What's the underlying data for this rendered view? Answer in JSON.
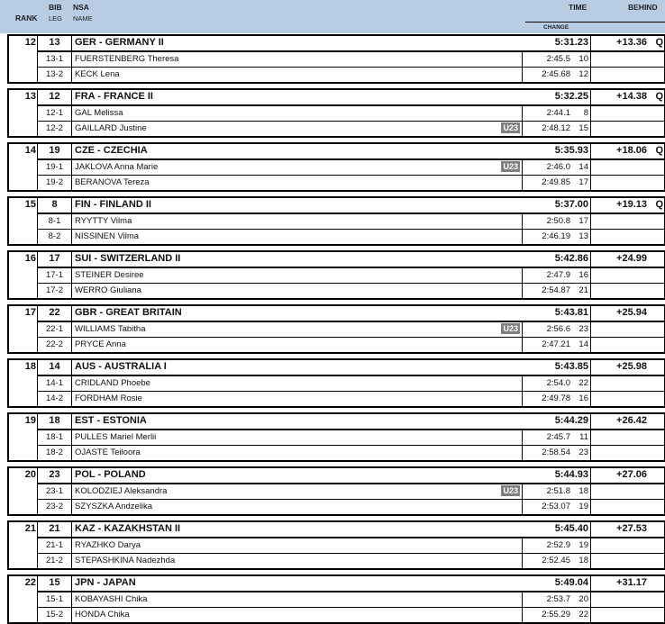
{
  "header": {
    "rank": "RANK",
    "bib": "BIB",
    "leg": "LEG",
    "nsa": "NSA",
    "name": "NAME",
    "time": "TIME",
    "change": "CHANGE",
    "behind": "BEHIND"
  },
  "groups": [
    {
      "rank": "12",
      "bib": "13",
      "team": "GER - GERMANY II",
      "time": "5:31.23",
      "behind": "+13.36",
      "q": "Q",
      "legs": [
        {
          "leg": "13-1",
          "name": "FUERSTENBERG Theresa",
          "u23": "",
          "time": "2:45.5",
          "pos": "10"
        },
        {
          "leg": "13-2",
          "name": "KECK Lena",
          "u23": "",
          "time": "2:45.68",
          "pos": "12"
        }
      ]
    },
    {
      "rank": "13",
      "bib": "12",
      "team": "FRA - FRANCE II",
      "time": "5:32.25",
      "behind": "+14.38",
      "q": "Q",
      "legs": [
        {
          "leg": "12-1",
          "name": "GAL Melissa",
          "u23": "",
          "time": "2:44.1",
          "pos": "8"
        },
        {
          "leg": "12-2",
          "name": "GAILLARD Justine",
          "u23": "U23",
          "time": "2:48.12",
          "pos": "15"
        }
      ]
    },
    {
      "rank": "14",
      "bib": "19",
      "team": "CZE - CZECHIA",
      "time": "5:35.93",
      "behind": "+18.06",
      "q": "Q",
      "legs": [
        {
          "leg": "19-1",
          "name": "JAKLOVA Anna Marie",
          "u23": "U23",
          "time": "2:46.0",
          "pos": "14"
        },
        {
          "leg": "19-2",
          "name": "BERANOVA Tereza",
          "u23": "",
          "time": "2:49.85",
          "pos": "17"
        }
      ]
    },
    {
      "rank": "15",
      "bib": "8",
      "team": "FIN - FINLAND II",
      "time": "5:37.00",
      "behind": "+19.13",
      "q": "Q",
      "legs": [
        {
          "leg": "8-1",
          "name": "RYYTTY Vilma",
          "u23": "",
          "time": "2:50.8",
          "pos": "17"
        },
        {
          "leg": "8-2",
          "name": "NISSINEN Vilma",
          "u23": "",
          "time": "2:46.19",
          "pos": "13"
        }
      ]
    },
    {
      "rank": "16",
      "bib": "17",
      "team": "SUI - SWITZERLAND II",
      "time": "5:42.86",
      "behind": "+24.99",
      "q": "",
      "legs": [
        {
          "leg": "17-1",
          "name": "STEINER Desiree",
          "u23": "",
          "time": "2:47.9",
          "pos": "16"
        },
        {
          "leg": "17-2",
          "name": "WERRO Giuliana",
          "u23": "",
          "time": "2:54.87",
          "pos": "21"
        }
      ]
    },
    {
      "rank": "17",
      "bib": "22",
      "team": "GBR - GREAT BRITAIN",
      "time": "5:43.81",
      "behind": "+25.94",
      "q": "",
      "legs": [
        {
          "leg": "22-1",
          "name": "WILLIAMS Tabitha",
          "u23": "U23",
          "time": "2:56.6",
          "pos": "23"
        },
        {
          "leg": "22-2",
          "name": "PRYCE Anna",
          "u23": "",
          "time": "2:47.21",
          "pos": "14"
        }
      ]
    },
    {
      "rank": "18",
      "bib": "14",
      "team": "AUS - AUSTRALIA I",
      "time": "5:43.85",
      "behind": "+25.98",
      "q": "",
      "legs": [
        {
          "leg": "14-1",
          "name": "CRIDLAND Phoebe",
          "u23": "",
          "time": "2:54.0",
          "pos": "22"
        },
        {
          "leg": "14-2",
          "name": "FORDHAM Rosie",
          "u23": "",
          "time": "2:49.78",
          "pos": "16"
        }
      ]
    },
    {
      "rank": "19",
      "bib": "18",
      "team": "EST - ESTONIA",
      "time": "5:44.29",
      "behind": "+26.42",
      "q": "",
      "legs": [
        {
          "leg": "18-1",
          "name": "PULLES Mariel Merlii",
          "u23": "",
          "time": "2:45.7",
          "pos": "11"
        },
        {
          "leg": "18-2",
          "name": "OJASTE Teiloora",
          "u23": "",
          "time": "2:58.54",
          "pos": "23"
        }
      ]
    },
    {
      "rank": "20",
      "bib": "23",
      "team": "POL - POLAND",
      "time": "5:44.93",
      "behind": "+27.06",
      "q": "",
      "legs": [
        {
          "leg": "23-1",
          "name": "KOLODZIEJ Aleksandra",
          "u23": "U23",
          "time": "2:51.8",
          "pos": "18"
        },
        {
          "leg": "23-2",
          "name": "SZYSZKA Andzelika",
          "u23": "",
          "time": "2:53.07",
          "pos": "19"
        }
      ]
    },
    {
      "rank": "21",
      "bib": "21",
      "team": "KAZ - KAZAKHSTAN II",
      "time": "5:45.40",
      "behind": "+27.53",
      "q": "",
      "legs": [
        {
          "leg": "21-1",
          "name": "RYAZHKO Darya",
          "u23": "",
          "time": "2:52.9",
          "pos": "19"
        },
        {
          "leg": "21-2",
          "name": "STEPASHKINA Nadezhda",
          "u23": "",
          "time": "2:52.45",
          "pos": "18"
        }
      ]
    },
    {
      "rank": "22",
      "bib": "15",
      "team": "JPN - JAPAN",
      "time": "5:49.04",
      "behind": "+31.17",
      "q": "",
      "legs": [
        {
          "leg": "15-1",
          "name": "KOBAYASHI Chika",
          "u23": "",
          "time": "2:53.7",
          "pos": "20"
        },
        {
          "leg": "15-2",
          "name": "HONDA Chika",
          "u23": "",
          "time": "2:55.29",
          "pos": "22"
        }
      ]
    }
  ]
}
